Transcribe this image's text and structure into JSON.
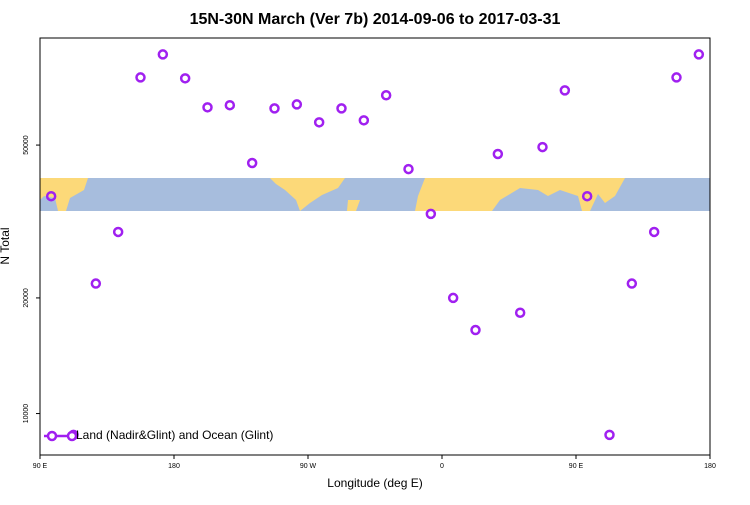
{
  "chart_data": {
    "type": "scatter",
    "title": "15N-30N March (Ver 7b)   2014-09-06 to 2017-03-31",
    "x_label": "Longitude (deg E)",
    "y_label": "N Total",
    "log_y": true,
    "xlim": [
      90,
      540
    ],
    "ylim": [
      7800,
      95000
    ],
    "xticks": [
      {
        "value": 90,
        "label": "90 E"
      },
      180,
      {
        "value": 270,
        "label": "90 W"
      },
      {
        "value": 360,
        "label": "0"
      },
      {
        "value": 450,
        "label": "90 E"
      },
      {
        "value": 540,
        "label": "180"
      }
    ],
    "yticks": [
      10000,
      20000,
      50000
    ],
    "legend_position": "lower left",
    "series": [
      {
        "name": "Land (Nadir&Glint) and Ocean (Glint)",
        "color": "#a020f0",
        "x": [
          97.5,
          112.5,
          127.5,
          142.5,
          157.5,
          172.5,
          187.5,
          202.5,
          217.5,
          232.5,
          247.5,
          262.5,
          277.5,
          292.5,
          307.5,
          322.5,
          337.5,
          352.5,
          367.5,
          382.5,
          397.5,
          412.5,
          427.5,
          442.5,
          457.5,
          472.5,
          487.5,
          502.5,
          517.5,
          532.5
        ],
        "values": [
          36800,
          8800,
          21800,
          29700,
          75000,
          86100,
          74600,
          62700,
          63500,
          44900,
          62300,
          63800,
          57300,
          62300,
          58000,
          67400,
          43300,
          33100,
          20000,
          16500,
          47400,
          18300,
          49400,
          69400,
          36800,
          8800,
          21800,
          29700,
          75000,
          86100
        ]
      }
    ]
  }
}
